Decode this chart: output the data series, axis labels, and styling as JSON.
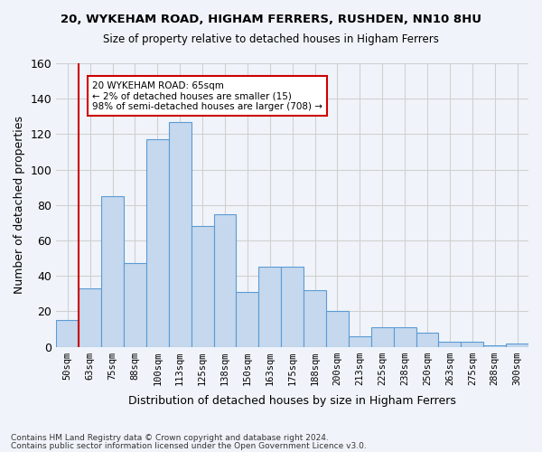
{
  "title1": "20, WYKEHAM ROAD, HIGHAM FERRERS, RUSHDEN, NN10 8HU",
  "title2": "Size of property relative to detached houses in Higham Ferrers",
  "xlabel": "Distribution of detached houses by size in Higham Ferrers",
  "ylabel": "Number of detached properties",
  "footer1": "Contains HM Land Registry data © Crown copyright and database right 2024.",
  "footer2": "Contains public sector information licensed under the Open Government Licence v3.0.",
  "categories": [
    "50sqm",
    "63sqm",
    "75sqm",
    "88sqm",
    "100sqm",
    "113sqm",
    "125sqm",
    "138sqm",
    "150sqm",
    "163sqm",
    "175sqm",
    "188sqm",
    "200sqm",
    "213sqm",
    "225sqm",
    "238sqm",
    "250sqm",
    "263sqm",
    "275sqm",
    "288sqm",
    "300sqm"
  ],
  "values": [
    15,
    33,
    85,
    47,
    117,
    127,
    68,
    75,
    31,
    45,
    45,
    32,
    20,
    6,
    11,
    11,
    8,
    3,
    3,
    1,
    2
  ],
  "bar_color": "#c5d8ed",
  "bar_edge_color": "#5b9bd5",
  "annotation_text": "20 WYKEHAM ROAD: 65sqm\n← 2% of detached houses are smaller (15)\n98% of semi-detached houses are larger (708) →",
  "vline_x": 0.5,
  "ylim": [
    0,
    160
  ],
  "yticks": [
    0,
    20,
    40,
    60,
    80,
    100,
    120,
    140,
    160
  ],
  "grid_color": "#d0d0d0",
  "background_color": "#f0f4fa",
  "annotation_box_color": "#ffffff",
  "annotation_box_edge": "#cc0000",
  "vline_color": "#cc0000"
}
